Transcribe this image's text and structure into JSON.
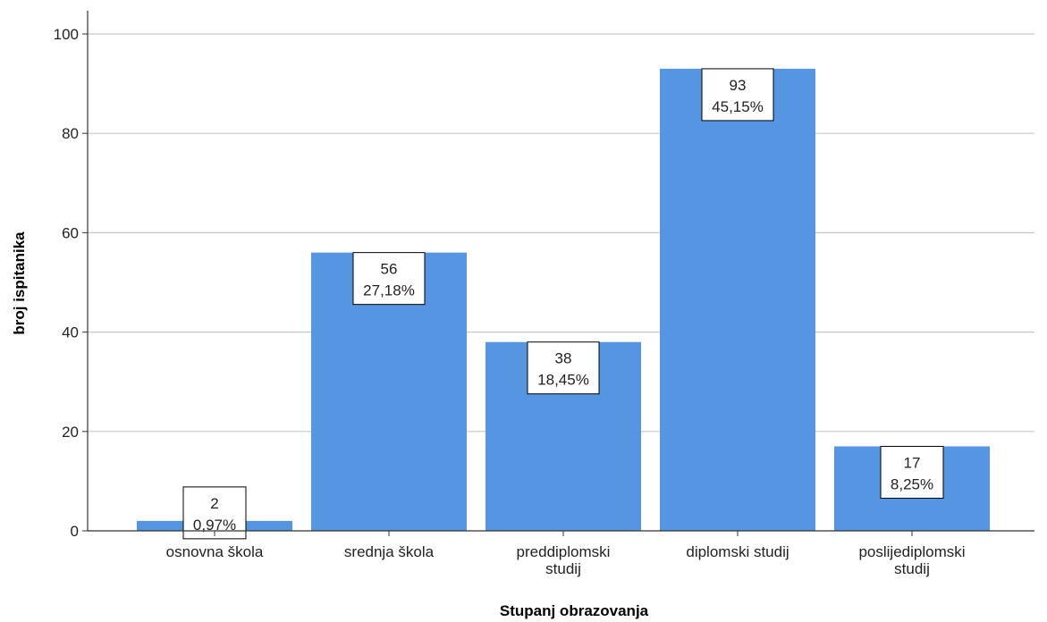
{
  "chart_data": {
    "type": "bar",
    "categories": [
      [
        "osnovna škola"
      ],
      [
        "srednja škola"
      ],
      [
        "preddiplomski",
        "studij"
      ],
      [
        "diplomski studij"
      ],
      [
        "poslijediplomski",
        "studij"
      ]
    ],
    "values": [
      2,
      56,
      38,
      93,
      17
    ],
    "percent_labels": [
      "0,97%",
      "27,18%",
      "18,45%",
      "45,15%",
      "8,25%"
    ],
    "xlabel": "Stupanj obrazovanja",
    "ylabel": "broj ispitanika",
    "ylim": [
      0,
      100
    ],
    "yticks": [
      0,
      20,
      40,
      60,
      80,
      100
    ],
    "grid": true,
    "bar_color": "#5595e1",
    "gridline_color": "#c8c8c8"
  }
}
